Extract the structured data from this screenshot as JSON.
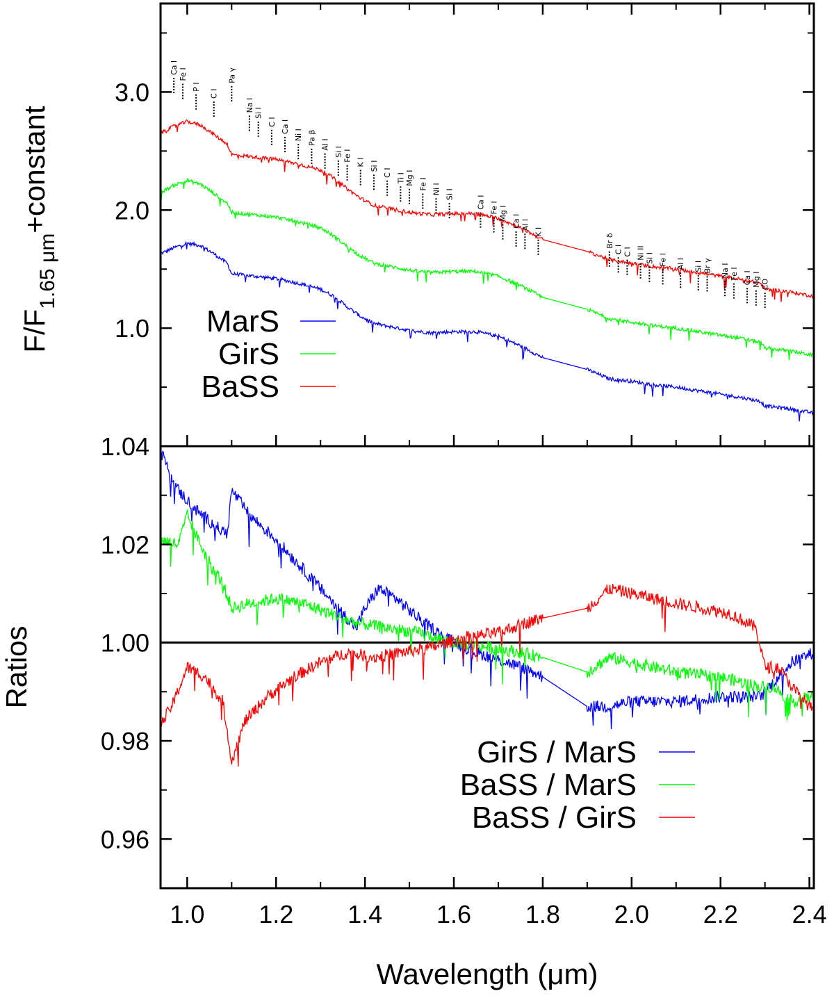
{
  "chart_data": [
    {
      "type": "line",
      "ylabel": "F/F1.65 μm+constant",
      "ylabel_main": "F/F",
      "ylabel_sub": "1.65 μm",
      "ylabel_tail": "+constant",
      "xlim": [
        0.94,
        2.41
      ],
      "ylim": [
        0.0,
        3.75
      ],
      "yticks": [
        1.0,
        2.0,
        3.0
      ],
      "ytick_labels": [
        "1.0",
        "2.0",
        "3.0"
      ],
      "legend_position": "left",
      "gap": [
        1.8,
        1.9
      ],
      "series": [
        {
          "name": "MarS",
          "color": "#0000ff",
          "x": [
            0.94,
            0.97,
            1.0,
            1.03,
            1.06,
            1.09,
            1.1,
            1.15,
            1.2,
            1.25,
            1.3,
            1.33,
            1.36,
            1.39,
            1.42,
            1.46,
            1.5,
            1.55,
            1.6,
            1.65,
            1.7,
            1.75,
            1.8,
            1.9,
            1.95,
            2.0,
            2.05,
            2.1,
            2.15,
            2.2,
            2.25,
            2.29,
            2.3,
            2.35,
            2.41
          ],
          "y": [
            1.63,
            1.68,
            1.72,
            1.7,
            1.63,
            1.55,
            1.46,
            1.44,
            1.42,
            1.38,
            1.33,
            1.27,
            1.18,
            1.1,
            1.04,
            1.01,
            0.98,
            0.96,
            0.97,
            0.97,
            0.93,
            0.85,
            0.75,
            0.65,
            0.57,
            0.55,
            0.52,
            0.5,
            0.47,
            0.44,
            0.41,
            0.38,
            0.34,
            0.32,
            0.28
          ]
        },
        {
          "name": "GirS",
          "color": "#00ff00",
          "x": [
            0.94,
            0.97,
            1.0,
            1.03,
            1.06,
            1.09,
            1.1,
            1.15,
            1.2,
            1.25,
            1.3,
            1.33,
            1.36,
            1.39,
            1.42,
            1.46,
            1.5,
            1.55,
            1.6,
            1.65,
            1.7,
            1.75,
            1.8,
            1.9,
            1.95,
            2.0,
            2.05,
            2.1,
            2.15,
            2.2,
            2.25,
            2.29,
            2.3,
            2.35,
            2.41
          ],
          "y": [
            2.15,
            2.21,
            2.25,
            2.22,
            2.14,
            2.06,
            1.98,
            1.96,
            1.94,
            1.9,
            1.85,
            1.78,
            1.69,
            1.61,
            1.55,
            1.52,
            1.49,
            1.47,
            1.48,
            1.48,
            1.44,
            1.36,
            1.26,
            1.16,
            1.08,
            1.05,
            1.02,
            1.0,
            0.97,
            0.94,
            0.91,
            0.88,
            0.83,
            0.81,
            0.77
          ]
        },
        {
          "name": "BaSS",
          "color": "#ff0000",
          "x": [
            0.94,
            0.97,
            1.0,
            1.03,
            1.06,
            1.09,
            1.1,
            1.15,
            1.2,
            1.25,
            1.3,
            1.33,
            1.36,
            1.39,
            1.42,
            1.46,
            1.5,
            1.55,
            1.6,
            1.65,
            1.7,
            1.75,
            1.8,
            1.9,
            1.95,
            2.0,
            2.05,
            2.1,
            2.15,
            2.2,
            2.25,
            2.29,
            2.3,
            2.35,
            2.41
          ],
          "y": [
            2.65,
            2.71,
            2.75,
            2.72,
            2.64,
            2.56,
            2.47,
            2.45,
            2.43,
            2.39,
            2.34,
            2.27,
            2.18,
            2.1,
            2.04,
            2.01,
            1.98,
            1.96,
            1.97,
            1.97,
            1.93,
            1.85,
            1.75,
            1.65,
            1.58,
            1.55,
            1.52,
            1.5,
            1.47,
            1.44,
            1.41,
            1.38,
            1.33,
            1.31,
            1.27
          ]
        }
      ],
      "line_ids": [
        {
          "x": 0.97,
          "y": 3.12,
          "label": "Ca I"
        },
        {
          "x": 0.99,
          "y": 3.07,
          "label": "Fe I"
        },
        {
          "x": 1.02,
          "y": 2.98,
          "label": "P I"
        },
        {
          "x": 1.06,
          "y": 2.92,
          "label": "C I"
        },
        {
          "x": 1.1,
          "y": 3.05,
          "label": "Pa γ"
        },
        {
          "x": 1.14,
          "y": 2.8,
          "label": "Na I"
        },
        {
          "x": 1.16,
          "y": 2.75,
          "label": "Si I"
        },
        {
          "x": 1.19,
          "y": 2.68,
          "label": "C I"
        },
        {
          "x": 1.22,
          "y": 2.62,
          "label": "Ca I"
        },
        {
          "x": 1.25,
          "y": 2.56,
          "label": "Ni I"
        },
        {
          "x": 1.28,
          "y": 2.52,
          "label": "Pa β"
        },
        {
          "x": 1.31,
          "y": 2.48,
          "label": "Al I"
        },
        {
          "x": 1.34,
          "y": 2.42,
          "label": "Si I"
        },
        {
          "x": 1.36,
          "y": 2.38,
          "label": "Fe I"
        },
        {
          "x": 1.39,
          "y": 2.34,
          "label": "K I"
        },
        {
          "x": 1.42,
          "y": 2.3,
          "label": "Si I"
        },
        {
          "x": 1.45,
          "y": 2.25,
          "label": "C I"
        },
        {
          "x": 1.48,
          "y": 2.2,
          "label": "Ti I"
        },
        {
          "x": 1.5,
          "y": 2.18,
          "label": "Mg I"
        },
        {
          "x": 1.53,
          "y": 2.14,
          "label": "Fe I"
        },
        {
          "x": 1.56,
          "y": 2.1,
          "label": "Ni I"
        },
        {
          "x": 1.59,
          "y": 2.06,
          "label": "Si I"
        },
        {
          "x": 1.66,
          "y": 1.98,
          "label": "Ca I"
        },
        {
          "x": 1.69,
          "y": 1.94,
          "label": "Fe I"
        },
        {
          "x": 1.71,
          "y": 1.88,
          "label": "Mg I"
        },
        {
          "x": 1.74,
          "y": 1.82,
          "label": "Ca I"
        },
        {
          "x": 1.76,
          "y": 1.8,
          "label": "Al I"
        },
        {
          "x": 1.79,
          "y": 1.75,
          "label": "K I"
        },
        {
          "x": 1.95,
          "y": 1.65,
          "label": "Br δ"
        },
        {
          "x": 1.97,
          "y": 1.6,
          "label": "C I"
        },
        {
          "x": 1.99,
          "y": 1.58,
          "label": "C I"
        },
        {
          "x": 2.02,
          "y": 1.55,
          "label": "Ni II"
        },
        {
          "x": 2.04,
          "y": 1.52,
          "label": "Si I"
        },
        {
          "x": 2.07,
          "y": 1.5,
          "label": "Fe I"
        },
        {
          "x": 2.11,
          "y": 1.47,
          "label": "Al I"
        },
        {
          "x": 2.15,
          "y": 1.45,
          "label": "Si I"
        },
        {
          "x": 2.17,
          "y": 1.44,
          "label": "Br γ"
        },
        {
          "x": 2.21,
          "y": 1.4,
          "label": "Na I"
        },
        {
          "x": 2.23,
          "y": 1.38,
          "label": "Fe I"
        },
        {
          "x": 2.26,
          "y": 1.34,
          "label": "Ca I"
        },
        {
          "x": 2.28,
          "y": 1.32,
          "label": "Mg I"
        },
        {
          "x": 2.3,
          "y": 1.3,
          "label": "CO"
        }
      ]
    },
    {
      "type": "line",
      "xlabel": "Wavelength (μm)",
      "ylabel": "Ratios",
      "xlim": [
        0.94,
        2.41
      ],
      "ylim": [
        0.95,
        1.04
      ],
      "xticks": [
        1.0,
        1.2,
        1.4,
        1.6,
        1.8,
        2.0,
        2.2,
        2.4
      ],
      "xtick_labels": [
        "1.0",
        "1.2",
        "1.4",
        "1.6",
        "1.8",
        "2.0",
        "2.2",
        "2.4"
      ],
      "yticks": [
        0.96,
        0.98,
        1.0,
        1.02,
        1.04
      ],
      "ytick_labels": [
        "0.96",
        "0.98",
        "1.00",
        "1.02",
        "1.04"
      ],
      "reference_line": 1.0,
      "legend_position": "bottom-right",
      "gap": [
        1.8,
        1.9
      ],
      "series": [
        {
          "name": "GirS / MarS",
          "color": "#0000ff",
          "x": [
            0.94,
            0.98,
            1.02,
            1.06,
            1.09,
            1.1,
            1.14,
            1.2,
            1.26,
            1.32,
            1.38,
            1.4,
            1.43,
            1.47,
            1.52,
            1.58,
            1.65,
            1.72,
            1.78,
            1.8,
            1.9,
            1.95,
            2.0,
            2.1,
            2.2,
            2.29,
            2.32,
            2.36,
            2.41
          ],
          "y": [
            1.039,
            1.031,
            1.027,
            1.024,
            1.022,
            1.031,
            1.026,
            1.021,
            1.015,
            1.009,
            1.003,
            1.007,
            1.011,
            1.009,
            1.005,
            1.001,
            0.998,
            0.996,
            0.994,
            0.993,
            0.987,
            0.987,
            0.988,
            0.988,
            0.989,
            0.989,
            0.992,
            0.996,
            0.998
          ]
        },
        {
          "name": "BaSS / MarS",
          "color": "#00ff00",
          "x": [
            0.94,
            0.98,
            1.0,
            1.04,
            1.08,
            1.1,
            1.14,
            1.2,
            1.26,
            1.32,
            1.38,
            1.45,
            1.52,
            1.6,
            1.68,
            1.75,
            1.8,
            1.9,
            1.95,
            2.0,
            2.1,
            2.2,
            2.29,
            2.32,
            2.36,
            2.41
          ],
          "y": [
            1.021,
            1.02,
            1.026,
            1.018,
            1.012,
            1.007,
            1.008,
            1.009,
            1.008,
            1.006,
            1.004,
            1.003,
            1.002,
            1.0,
            0.999,
            0.998,
            0.997,
            0.994,
            0.997,
            0.996,
            0.994,
            0.993,
            0.991,
            0.991,
            0.988,
            0.989
          ]
        },
        {
          "name": "BaSS / GirS",
          "color": "#ff0000",
          "x": [
            0.94,
            0.97,
            1.0,
            1.04,
            1.08,
            1.1,
            1.13,
            1.18,
            1.24,
            1.3,
            1.36,
            1.42,
            1.48,
            1.55,
            1.62,
            1.7,
            1.76,
            1.8,
            1.9,
            1.95,
            2.0,
            2.05,
            2.1,
            2.16,
            2.22,
            2.28,
            2.3,
            2.33,
            2.37,
            2.41
          ],
          "y": [
            0.983,
            0.988,
            0.995,
            0.993,
            0.988,
            0.976,
            0.984,
            0.989,
            0.993,
            0.996,
            0.998,
            0.997,
            0.998,
            0.999,
            1.001,
            1.002,
            1.004,
            1.005,
            1.007,
            1.011,
            1.01,
            1.009,
            1.008,
            1.007,
            1.006,
            1.003,
            0.995,
            0.995,
            0.99,
            0.986
          ]
        }
      ]
    }
  ]
}
